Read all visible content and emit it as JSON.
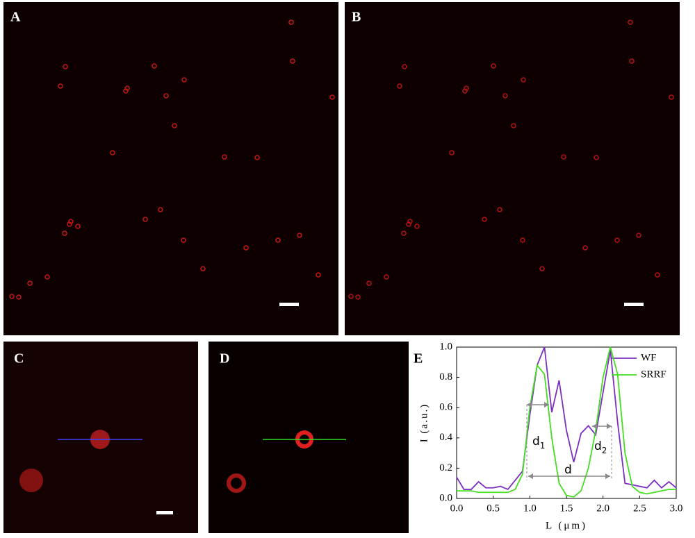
{
  "panels": {
    "a": "A",
    "b": "B",
    "c": "C",
    "d": "D"
  },
  "chart_data": {
    "type": "line",
    "panel_label": "E",
    "x_label": "L (μm)",
    "y_label": "I (a.u.)",
    "x": [
      0.0,
      0.1,
      0.2,
      0.3,
      0.4,
      0.5,
      0.6,
      0.7,
      0.8,
      0.9,
      1.0,
      1.1,
      1.2,
      1.3,
      1.4,
      1.5,
      1.6,
      1.7,
      1.8,
      1.9,
      2.0,
      2.1,
      2.2,
      2.3,
      2.4,
      2.5,
      2.6,
      2.7,
      2.8,
      2.9,
      3.0
    ],
    "series": [
      {
        "name": "WF",
        "color": "#7b2fbf",
        "values": [
          0.14,
          0.06,
          0.06,
          0.11,
          0.07,
          0.07,
          0.08,
          0.06,
          0.12,
          0.18,
          0.55,
          0.88,
          1.0,
          0.57,
          0.78,
          0.45,
          0.24,
          0.43,
          0.48,
          0.42,
          0.7,
          0.98,
          0.5,
          0.1,
          0.09,
          0.08,
          0.07,
          0.12,
          0.07,
          0.11,
          0.07
        ]
      },
      {
        "name": "SRRF",
        "color": "#44dd22",
        "values": [
          0.05,
          0.05,
          0.05,
          0.04,
          0.04,
          0.04,
          0.04,
          0.04,
          0.06,
          0.16,
          0.6,
          0.88,
          0.82,
          0.4,
          0.1,
          0.02,
          0.01,
          0.05,
          0.2,
          0.45,
          0.8,
          1.0,
          0.82,
          0.3,
          0.08,
          0.04,
          0.03,
          0.04,
          0.05,
          0.06,
          0.06
        ]
      }
    ],
    "xlim": [
      0,
      3
    ],
    "ylim": [
      0,
      1
    ],
    "xticks": [
      {
        "value": 0,
        "label": "0.0"
      },
      {
        "value": 0.5,
        "label": "0.5"
      },
      {
        "value": 1,
        "label": "1.0"
      },
      {
        "value": 1.5,
        "label": "1.5"
      },
      {
        "value": 2,
        "label": "2.0"
      },
      {
        "value": 2.5,
        "label": "2.5"
      },
      {
        "value": 3,
        "label": "3.0"
      }
    ],
    "yticks": [
      {
        "value": 0,
        "label": "0.0"
      },
      {
        "value": 0.2,
        "label": "0.2"
      },
      {
        "value": 0.4,
        "label": "0.4"
      },
      {
        "value": 0.6,
        "label": "0.6"
      },
      {
        "value": 0.8,
        "label": "0.8"
      },
      {
        "value": 1,
        "label": "1.0"
      }
    ],
    "annotations": {
      "d1": {
        "text": "d",
        "sub": "1"
      },
      "d2": {
        "text": "d",
        "sub": "2"
      },
      "d": "d"
    },
    "legend": "upper right"
  }
}
